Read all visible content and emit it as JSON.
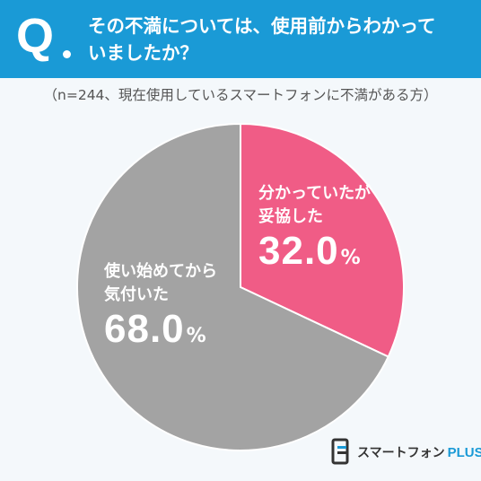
{
  "header": {
    "q_label": "Q",
    "question": "その不満については、使用前からわかって\nいましたか？"
  },
  "note": "（n=244、現在使用しているスマートフォンに不満がある方）",
  "chart_data": {
    "type": "pie",
    "title": "",
    "slices": [
      {
        "label": "分かっていたが\n妥協した",
        "value": 32.0,
        "value_text": "32.0",
        "unit": "%",
        "color": "#f05c86"
      },
      {
        "label": "使い始めてから\n気付いた",
        "value": 68.0,
        "value_text": "68.0",
        "unit": "%",
        "color": "#a3a3a3"
      }
    ],
    "start_angle": "12 o'clock",
    "direction": "clockwise"
  },
  "logo": {
    "name": "スマートフォン",
    "suffix": "PLUS"
  },
  "colors": {
    "header": "#1a9ad6",
    "background": "#f4f8fb",
    "border": "#ffffff"
  }
}
